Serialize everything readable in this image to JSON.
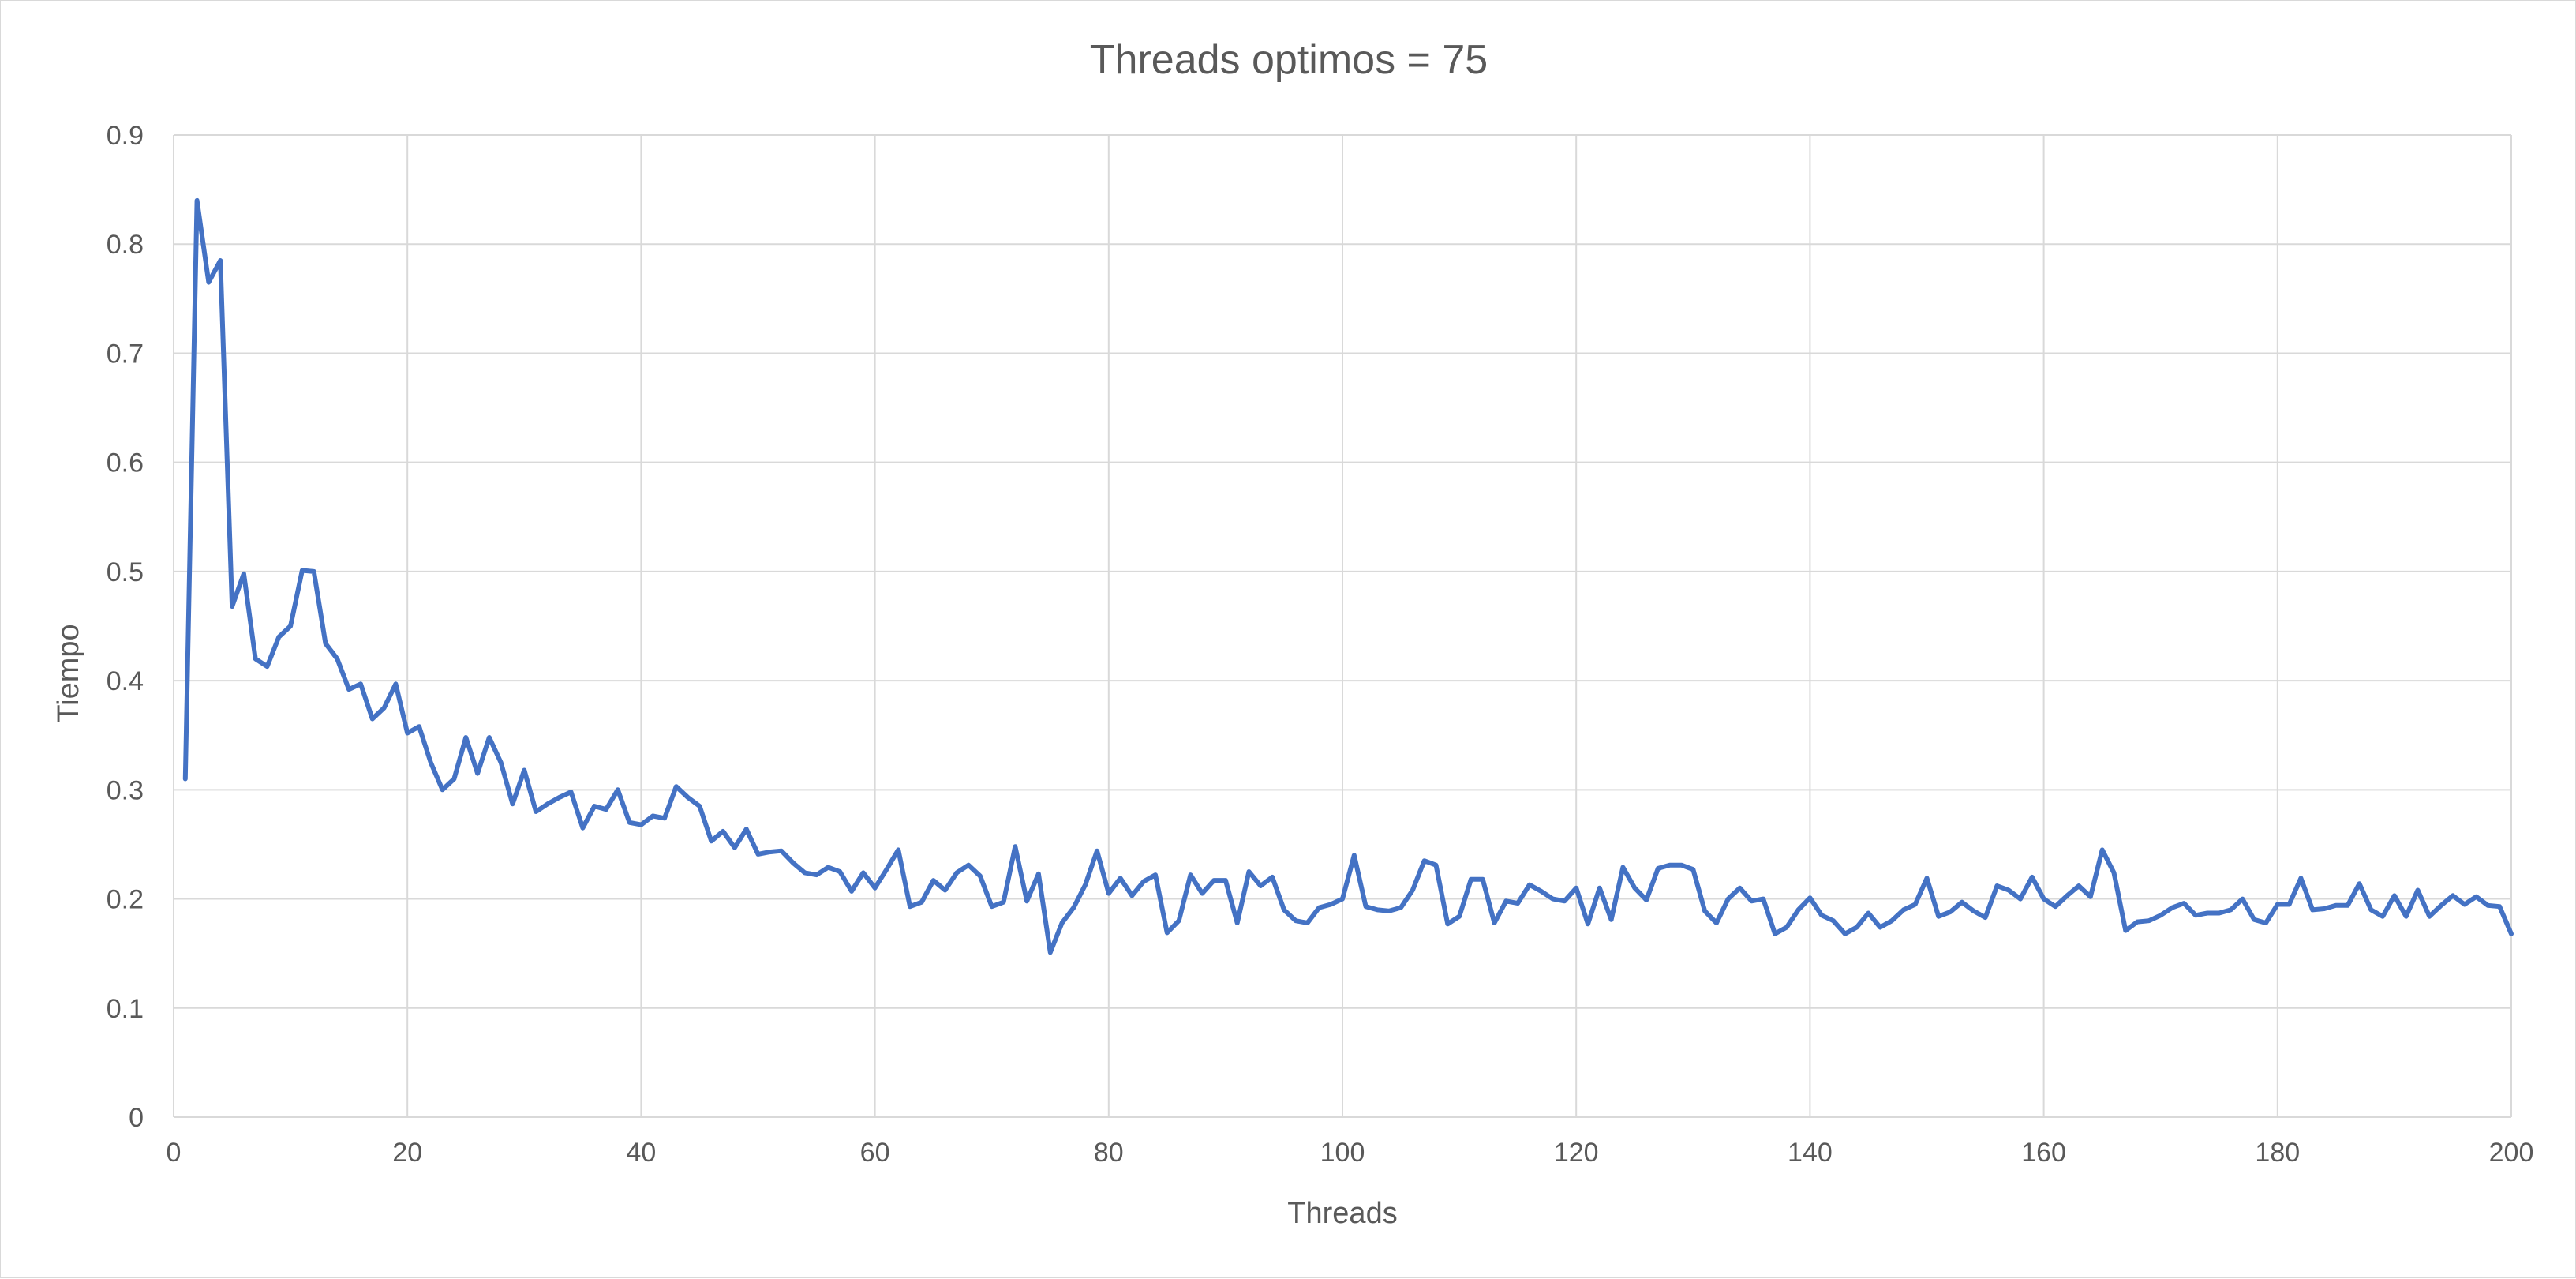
{
  "chart_data": {
    "type": "line",
    "title": "Threads optimos = 75",
    "xlabel": "Threads",
    "ylabel": "Tiempo",
    "xlim": [
      0,
      200
    ],
    "ylim": [
      0,
      0.9
    ],
    "xticks": [
      "0",
      "20",
      "40",
      "60",
      "80",
      "100",
      "120",
      "140",
      "160",
      "180",
      "200"
    ],
    "yticks": [
      "0",
      "0.1",
      "0.2",
      "0.3",
      "0.4",
      "0.5",
      "0.6",
      "0.7",
      "0.8",
      "0.9"
    ],
    "grid": true,
    "legend": "none",
    "line_color": "#4472C4",
    "grid_color": "#d9d9d9",
    "series": [
      {
        "x": [
          1,
          2,
          3,
          4,
          5,
          6,
          7,
          8,
          9,
          10,
          11,
          12,
          13,
          14,
          15,
          16,
          17,
          18,
          19,
          20,
          21,
          22,
          23,
          24,
          25,
          26,
          27,
          28,
          29,
          30,
          31,
          32,
          33,
          34,
          35,
          36,
          37,
          38,
          39,
          40,
          41,
          42,
          43,
          44,
          45,
          46,
          47,
          48,
          49,
          50,
          51,
          52,
          53,
          54,
          55,
          56,
          57,
          58,
          59,
          60,
          61,
          62,
          63,
          64,
          65,
          66,
          67,
          68,
          69,
          70,
          71,
          72,
          73,
          74,
          75,
          76,
          77,
          78,
          79,
          80,
          81,
          82,
          83,
          84,
          85,
          86,
          87,
          88,
          89,
          90,
          91,
          92,
          93,
          94,
          95,
          96,
          97,
          98,
          99,
          100,
          101,
          102,
          103,
          104,
          105,
          106,
          107,
          108,
          109,
          110,
          111,
          112,
          113,
          114,
          115,
          116,
          117,
          118,
          119,
          120,
          121,
          122,
          123,
          124,
          125,
          126,
          127,
          128,
          129,
          130,
          131,
          132,
          133,
          134,
          135,
          136,
          137,
          138,
          139,
          140,
          141,
          142,
          143,
          144,
          145,
          146,
          147,
          148,
          149,
          150,
          151,
          152,
          153,
          154,
          155,
          156,
          157,
          158,
          159,
          160,
          161,
          162,
          163,
          164,
          165,
          166,
          167,
          168,
          169,
          170,
          171,
          172,
          173,
          174,
          175,
          176,
          177,
          178,
          179,
          180,
          181,
          182,
          183,
          184,
          185,
          186,
          187,
          188,
          189,
          190,
          191,
          192,
          193,
          194,
          195,
          196,
          197,
          198,
          199,
          200
        ],
        "y": [
          0.31,
          0.84,
          0.765,
          0.785,
          0.468,
          0.498,
          0.42,
          0.413,
          0.44,
          0.45,
          0.501,
          0.5,
          0.434,
          0.42,
          0.392,
          0.397,
          0.365,
          0.375,
          0.397,
          0.352,
          0.358,
          0.325,
          0.3,
          0.31,
          0.348,
          0.315,
          0.348,
          0.325,
          0.287,
          0.318,
          0.28,
          0.287,
          0.293,
          0.298,
          0.265,
          0.285,
          0.282,
          0.3,
          0.27,
          0.268,
          0.276,
          0.274,
          0.303,
          0.293,
          0.285,
          0.253,
          0.262,
          0.247,
          0.264,
          0.241,
          0.243,
          0.244,
          0.233,
          0.224,
          0.222,
          0.229,
          0.225,
          0.207,
          0.224,
          0.21,
          0.227,
          0.245,
          0.193,
          0.197,
          0.217,
          0.208,
          0.224,
          0.231,
          0.221,
          0.193,
          0.197,
          0.248,
          0.198,
          0.223,
          0.151,
          0.178,
          0.192,
          0.213,
          0.244,
          0.205,
          0.219,
          0.203,
          0.216,
          0.222,
          0.169,
          0.18,
          0.222,
          0.205,
          0.217,
          0.217,
          0.178,
          0.225,
          0.212,
          0.22,
          0.19,
          0.18,
          0.178,
          0.192,
          0.195,
          0.2,
          0.24,
          0.193,
          0.19,
          0.189,
          0.192,
          0.208,
          0.235,
          0.231,
          0.177,
          0.184,
          0.218,
          0.218,
          0.178,
          0.198,
          0.196,
          0.213,
          0.207,
          0.2,
          0.198,
          0.21,
          0.177,
          0.21,
          0.181,
          0.229,
          0.21,
          0.199,
          0.228,
          0.231,
          0.231,
          0.227,
          0.189,
          0.178,
          0.2,
          0.21,
          0.198,
          0.2,
          0.168,
          0.174,
          0.19,
          0.201,
          0.185,
          0.18,
          0.168,
          0.174,
          0.187,
          0.174,
          0.18,
          0.19,
          0.195,
          0.219,
          0.184,
          0.188,
          0.197,
          0.189,
          0.183,
          0.212,
          0.208,
          0.2,
          0.22,
          0.2,
          0.193,
          0.203,
          0.212,
          0.202,
          0.245,
          0.224,
          0.171,
          0.179,
          0.18,
          0.185,
          0.192,
          0.196,
          0.185,
          0.187,
          0.187,
          0.19,
          0.2,
          0.181,
          0.178,
          0.195,
          0.195,
          0.219,
          0.19,
          0.191,
          0.194,
          0.194,
          0.214,
          0.19,
          0.184,
          0.203,
          0.184,
          0.208,
          0.184,
          0.194,
          0.203,
          0.195,
          0.202,
          0.194,
          0.193,
          0.168
        ]
      }
    ]
  }
}
